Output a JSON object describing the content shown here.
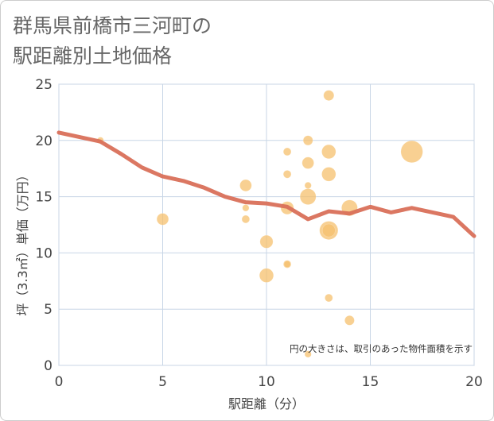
{
  "title_lines": [
    "群馬県前橋市三河町の",
    "駅距離別土地価格"
  ],
  "chart_data": {
    "type": "scatter",
    "title": "群馬県前橋市三河町の駅距離別土地価格",
    "xlabel": "駅距離（分）",
    "ylabel": "坪（3.3㎡）単価（万円）",
    "xlim": [
      0,
      20
    ],
    "ylim": [
      0,
      25
    ],
    "xticks": [
      0,
      5,
      10,
      15,
      20
    ],
    "yticks": [
      0,
      5,
      10,
      15,
      20,
      25
    ],
    "grid": true,
    "note": "円の大きさは、取引のあった物件面積を示す",
    "bubble_color": "#f5c06e",
    "line_color": "#d9705a",
    "bubbles": [
      {
        "x": 2,
        "y": 20,
        "size": 1
      },
      {
        "x": 5,
        "y": 13,
        "size": 4
      },
      {
        "x": 9,
        "y": 16,
        "size": 4
      },
      {
        "x": 9,
        "y": 14,
        "size": 1
      },
      {
        "x": 9,
        "y": 13,
        "size": 1.5
      },
      {
        "x": 10,
        "y": 11,
        "size": 5
      },
      {
        "x": 10,
        "y": 8,
        "size": 6
      },
      {
        "x": 11,
        "y": 19,
        "size": 1.5
      },
      {
        "x": 11,
        "y": 17,
        "size": 1.5
      },
      {
        "x": 11,
        "y": 14,
        "size": 5
      },
      {
        "x": 11,
        "y": 9,
        "size": 1.5
      },
      {
        "x": 11,
        "y": 9,
        "size": 1
      },
      {
        "x": 12,
        "y": 20,
        "size": 2.5
      },
      {
        "x": 12,
        "y": 18,
        "size": 4
      },
      {
        "x": 12,
        "y": 16,
        "size": 1
      },
      {
        "x": 12,
        "y": 15,
        "size": 8
      },
      {
        "x": 12,
        "y": 1,
        "size": 1
      },
      {
        "x": 13,
        "y": 24,
        "size": 3
      },
      {
        "x": 13,
        "y": 19,
        "size": 6
      },
      {
        "x": 13,
        "y": 17,
        "size": 6
      },
      {
        "x": 13,
        "y": 12,
        "size": 11
      },
      {
        "x": 13,
        "y": 12,
        "size": 5
      },
      {
        "x": 13,
        "y": 6,
        "size": 1.5
      },
      {
        "x": 14,
        "y": 14,
        "size": 8
      },
      {
        "x": 14,
        "y": 4,
        "size": 2.5
      },
      {
        "x": 17,
        "y": 19,
        "size": 16
      }
    ],
    "line": {
      "x": [
        0,
        1,
        2,
        3,
        4,
        5,
        6,
        7,
        8,
        9,
        10,
        11,
        12,
        13,
        14,
        15,
        16,
        17,
        18,
        19,
        20
      ],
      "y": [
        20.7,
        20.3,
        19.9,
        18.8,
        17.6,
        16.8,
        16.4,
        15.8,
        15.0,
        14.5,
        14.4,
        14.1,
        13.0,
        13.7,
        13.5,
        14.1,
        13.6,
        14.0,
        13.6,
        13.2,
        11.5
      ]
    }
  }
}
